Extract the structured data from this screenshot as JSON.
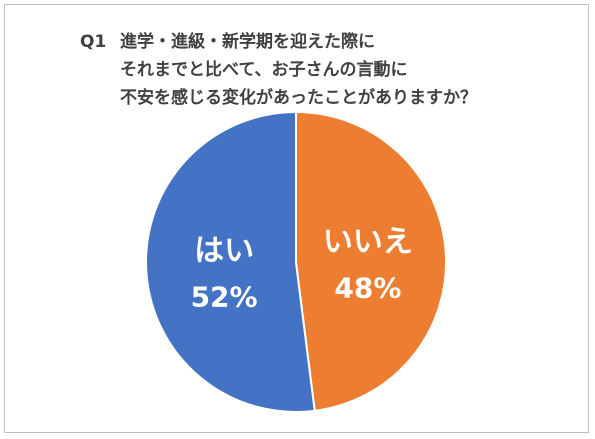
{
  "title": {
    "prefix": "Q1",
    "line1": "進学・進級・新学期を迎えた際に",
    "line2": "それまでと比べて、お子さんの言動に",
    "line3": "不安を感じる変化があったことがありますか？"
  },
  "chart_data": {
    "type": "pie",
    "slices": [
      {
        "label": "はい",
        "value": 52,
        "value_label": "52%",
        "color": "#4472C4"
      },
      {
        "label": "いいえ",
        "value": 48,
        "value_label": "48%",
        "color": "#ED7D31"
      }
    ],
    "start": "top",
    "direction": "counterclockwise-first-slice",
    "legend": "none"
  }
}
